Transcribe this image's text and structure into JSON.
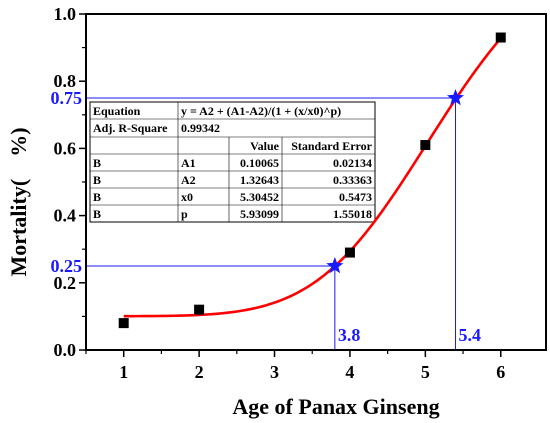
{
  "chart_data": {
    "type": "scatter",
    "xlabel": "Age of Panax Ginseng",
    "ylabel": "Mortality(　%)",
    "xlim": [
      0.5,
      6.6
    ],
    "ylim": [
      0.0,
      1.0
    ],
    "x_ticks": [
      "1",
      "2",
      "3",
      "4",
      "5",
      "6"
    ],
    "y_ticks": [
      "0.0",
      "0.2",
      "0.4",
      "0.6",
      "0.8",
      "1.0"
    ],
    "series": [
      {
        "points": [
          [
            1,
            0.08
          ],
          [
            2,
            0.12
          ],
          [
            4,
            0.29
          ],
          [
            5,
            0.61
          ],
          [
            6,
            0.93
          ]
        ],
        "marker": "square",
        "color": "#000000"
      }
    ],
    "fit_curve": {
      "equation": "y = A2 + (A1-A2)/(1 + (x/x0)^p)",
      "A1": 0.10065,
      "A2": 1.32643,
      "x0": 5.30452,
      "p": 5.93099,
      "x_range": [
        1,
        6
      ],
      "color": "#ff0000"
    },
    "annotations": [
      {
        "x": 3.8,
        "y": 0.25,
        "x_label": "3.8",
        "y_label": "0.25",
        "marker": "star",
        "color": "#1a1aff"
      },
      {
        "x": 5.4,
        "y": 0.75,
        "x_label": "5.4",
        "y_label": "0.75",
        "marker": "star",
        "color": "#1a1aff"
      }
    ],
    "table": {
      "rows": [
        [
          "Equation",
          "y = A2 + (A1-A2)/(1 + (x/x0)^p)",
          "",
          ""
        ],
        [
          "Adj. R-Square",
          "0.99342",
          "",
          ""
        ],
        [
          "",
          "",
          "Value",
          "Standard Error"
        ],
        [
          "B",
          "A1",
          "0.10065",
          "0.02134"
        ],
        [
          "B",
          "A2",
          "1.32643",
          "0.33363"
        ],
        [
          "B",
          "x0",
          "5.30452",
          "0.5473"
        ],
        [
          "B",
          "p",
          "5.93099",
          "1.55018"
        ]
      ]
    }
  }
}
